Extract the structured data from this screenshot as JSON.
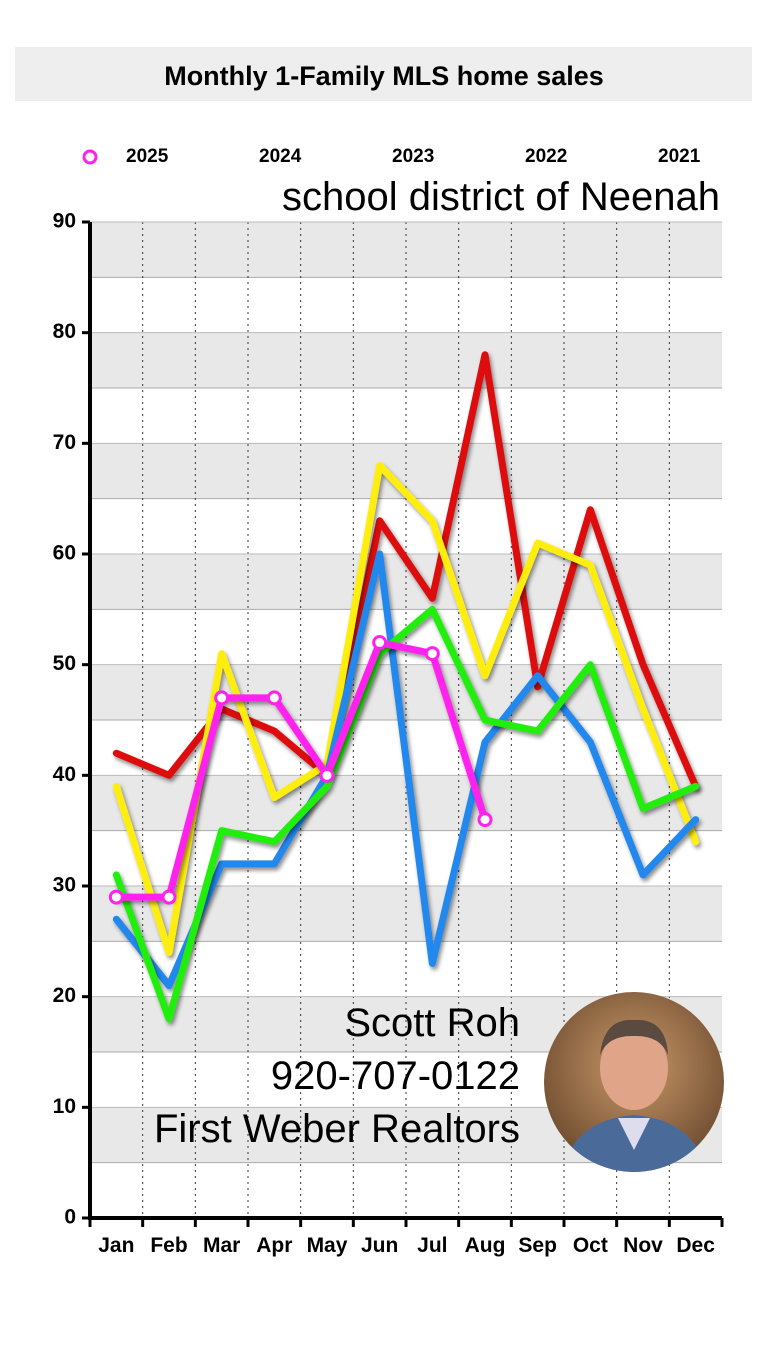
{
  "chart_data": {
    "type": "line",
    "title": "Monthly  1-Family MLS home sales",
    "subtitle": "school district of Neenah",
    "annotations": [
      "Scott Roh",
      "920-707-0122",
      "First Weber Realtors"
    ],
    "categories": [
      "Jan",
      "Feb",
      "Mar",
      "Apr",
      "May",
      "Jun",
      "Jul",
      "Aug",
      "Sep",
      "Oct",
      "Nov",
      "Dec"
    ],
    "series": [
      {
        "name": "2025",
        "color": "#ff22ee",
        "markers": true,
        "values": [
          29,
          29,
          47,
          47,
          40,
          52,
          51,
          36,
          null,
          null,
          null,
          null
        ]
      },
      {
        "name": "2024",
        "color": "#22ee11",
        "values": [
          31,
          18,
          35,
          34,
          39,
          51,
          55,
          45,
          44,
          50,
          37,
          39
        ]
      },
      {
        "name": "2023",
        "color": "#2288ee",
        "values": [
          27,
          21,
          32,
          32,
          40,
          60,
          23,
          43,
          49,
          43,
          31,
          36
        ]
      },
      {
        "name": "2022",
        "color": "#ffee11",
        "values": [
          39,
          24,
          51,
          38,
          41,
          68,
          63,
          49,
          61,
          59,
          46,
          34
        ]
      },
      {
        "name": "2021",
        "color": "#dd1111",
        "values": [
          42,
          40,
          46,
          44,
          40,
          63,
          56,
          78,
          48,
          64,
          50,
          39
        ]
      }
    ],
    "ylim": [
      0,
      90
    ],
    "yticks": [
      0,
      10,
      20,
      30,
      40,
      50,
      60,
      70,
      80,
      90
    ],
    "grid": true
  }
}
